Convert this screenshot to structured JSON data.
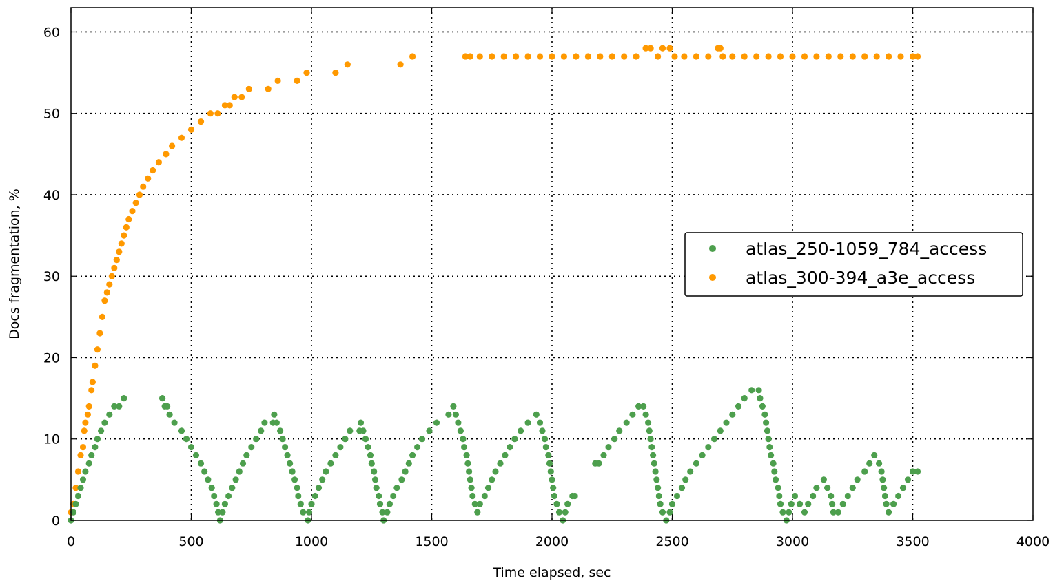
{
  "chart_data": {
    "type": "scatter",
    "title": "",
    "xlabel": "Time elapsed, sec",
    "ylabel": "Docs fragmentation, %",
    "xlim": [
      0,
      4000
    ],
    "ylim": [
      0,
      63
    ],
    "xticks": [
      0,
      500,
      1000,
      1500,
      2000,
      2500,
      3000,
      3500,
      4000
    ],
    "yticks": [
      0,
      10,
      20,
      30,
      40,
      50,
      60
    ],
    "grid": true,
    "legend_position": "center-right",
    "series": [
      {
        "name": "atlas_250-1059_784_access",
        "color": "#4d9f4d",
        "points": [
          [
            0,
            0
          ],
          [
            10,
            1
          ],
          [
            20,
            2
          ],
          [
            30,
            3
          ],
          [
            40,
            4
          ],
          [
            50,
            5
          ],
          [
            60,
            6
          ],
          [
            75,
            7
          ],
          [
            85,
            8
          ],
          [
            100,
            9
          ],
          [
            110,
            10
          ],
          [
            125,
            11
          ],
          [
            140,
            12
          ],
          [
            160,
            13
          ],
          [
            180,
            14
          ],
          [
            200,
            14
          ],
          [
            220,
            15
          ],
          [
            380,
            15
          ],
          [
            390,
            14
          ],
          [
            400,
            14
          ],
          [
            410,
            13
          ],
          [
            430,
            12
          ],
          [
            460,
            11
          ],
          [
            480,
            10
          ],
          [
            500,
            9
          ],
          [
            520,
            8
          ],
          [
            540,
            7
          ],
          [
            555,
            6
          ],
          [
            570,
            5
          ],
          [
            585,
            4
          ],
          [
            595,
            3
          ],
          [
            605,
            2
          ],
          [
            612,
            1
          ],
          [
            620,
            0
          ],
          [
            630,
            1
          ],
          [
            640,
            2
          ],
          [
            655,
            3
          ],
          [
            670,
            4
          ],
          [
            685,
            5
          ],
          [
            700,
            6
          ],
          [
            715,
            7
          ],
          [
            730,
            8
          ],
          [
            750,
            9
          ],
          [
            770,
            10
          ],
          [
            790,
            11
          ],
          [
            805,
            12
          ],
          [
            840,
            12
          ],
          [
            845,
            13
          ],
          [
            855,
            12
          ],
          [
            870,
            11
          ],
          [
            880,
            10
          ],
          [
            890,
            9
          ],
          [
            900,
            8
          ],
          [
            910,
            7
          ],
          [
            920,
            6
          ],
          [
            930,
            5
          ],
          [
            940,
            4
          ],
          [
            945,
            3
          ],
          [
            955,
            2
          ],
          [
            965,
            1
          ],
          [
            985,
            0
          ],
          [
            990,
            1
          ],
          [
            1000,
            2
          ],
          [
            1015,
            3
          ],
          [
            1030,
            4
          ],
          [
            1045,
            5
          ],
          [
            1060,
            6
          ],
          [
            1080,
            7
          ],
          [
            1100,
            8
          ],
          [
            1120,
            9
          ],
          [
            1140,
            10
          ],
          [
            1160,
            11
          ],
          [
            1200,
            11
          ],
          [
            1205,
            12
          ],
          [
            1215,
            11
          ],
          [
            1225,
            10
          ],
          [
            1235,
            9
          ],
          [
            1245,
            8
          ],
          [
            1250,
            7
          ],
          [
            1260,
            6
          ],
          [
            1265,
            5
          ],
          [
            1270,
            4
          ],
          [
            1280,
            3
          ],
          [
            1285,
            2
          ],
          [
            1295,
            1
          ],
          [
            1300,
            0
          ],
          [
            1315,
            1
          ],
          [
            1325,
            2
          ],
          [
            1340,
            3
          ],
          [
            1355,
            4
          ],
          [
            1375,
            5
          ],
          [
            1390,
            6
          ],
          [
            1405,
            7
          ],
          [
            1420,
            8
          ],
          [
            1440,
            9
          ],
          [
            1460,
            10
          ],
          [
            1490,
            11
          ],
          [
            1520,
            12
          ],
          [
            1570,
            13
          ],
          [
            1590,
            14
          ],
          [
            1600,
            13
          ],
          [
            1610,
            12
          ],
          [
            1620,
            11
          ],
          [
            1630,
            10
          ],
          [
            1635,
            9
          ],
          [
            1645,
            8
          ],
          [
            1650,
            7
          ],
          [
            1655,
            6
          ],
          [
            1660,
            5
          ],
          [
            1665,
            4
          ],
          [
            1670,
            3
          ],
          [
            1680,
            2
          ],
          [
            1690,
            1
          ],
          [
            1700,
            2
          ],
          [
            1720,
            3
          ],
          [
            1735,
            4
          ],
          [
            1750,
            5
          ],
          [
            1765,
            6
          ],
          [
            1785,
            7
          ],
          [
            1805,
            8
          ],
          [
            1825,
            9
          ],
          [
            1845,
            10
          ],
          [
            1870,
            11
          ],
          [
            1900,
            12
          ],
          [
            1935,
            13
          ],
          [
            1950,
            12
          ],
          [
            1960,
            11
          ],
          [
            1970,
            10
          ],
          [
            1975,
            9
          ],
          [
            1985,
            8
          ],
          [
            1990,
            7
          ],
          [
            1995,
            6
          ],
          [
            2000,
            5
          ],
          [
            2005,
            4
          ],
          [
            2010,
            3
          ],
          [
            2020,
            2
          ],
          [
            2030,
            1
          ],
          [
            2045,
            0
          ],
          [
            2055,
            1
          ],
          [
            2065,
            2
          ],
          [
            2085,
            3
          ],
          [
            2095,
            3
          ],
          [
            2180,
            7
          ],
          [
            2195,
            7
          ],
          [
            2215,
            8
          ],
          [
            2235,
            9
          ],
          [
            2260,
            10
          ],
          [
            2280,
            11
          ],
          [
            2310,
            12
          ],
          [
            2335,
            13
          ],
          [
            2360,
            14
          ],
          [
            2380,
            14
          ],
          [
            2390,
            13
          ],
          [
            2400,
            12
          ],
          [
            2405,
            11
          ],
          [
            2410,
            10
          ],
          [
            2415,
            9
          ],
          [
            2420,
            8
          ],
          [
            2425,
            7
          ],
          [
            2430,
            6
          ],
          [
            2435,
            5
          ],
          [
            2440,
            4
          ],
          [
            2445,
            3
          ],
          [
            2450,
            2
          ],
          [
            2460,
            1
          ],
          [
            2475,
            0
          ],
          [
            2490,
            1
          ],
          [
            2500,
            2
          ],
          [
            2520,
            3
          ],
          [
            2540,
            4
          ],
          [
            2555,
            5
          ],
          [
            2575,
            6
          ],
          [
            2600,
            7
          ],
          [
            2625,
            8
          ],
          [
            2650,
            9
          ],
          [
            2675,
            10
          ],
          [
            2700,
            11
          ],
          [
            2725,
            12
          ],
          [
            2750,
            13
          ],
          [
            2775,
            14
          ],
          [
            2800,
            15
          ],
          [
            2830,
            16
          ],
          [
            2860,
            16
          ],
          [
            2865,
            15
          ],
          [
            2875,
            14
          ],
          [
            2885,
            13
          ],
          [
            2890,
            12
          ],
          [
            2895,
            11
          ],
          [
            2900,
            10
          ],
          [
            2905,
            9
          ],
          [
            2910,
            8
          ],
          [
            2920,
            7
          ],
          [
            2925,
            6
          ],
          [
            2930,
            5
          ],
          [
            2940,
            4
          ],
          [
            2945,
            3
          ],
          [
            2950,
            2
          ],
          [
            2960,
            1
          ],
          [
            2975,
            0
          ],
          [
            2985,
            1
          ],
          [
            2995,
            2
          ],
          [
            3010,
            3
          ],
          [
            3030,
            2
          ],
          [
            3050,
            1
          ],
          [
            3065,
            2
          ],
          [
            3085,
            3
          ],
          [
            3100,
            4
          ],
          [
            3130,
            5
          ],
          [
            3145,
            4
          ],
          [
            3160,
            3
          ],
          [
            3165,
            2
          ],
          [
            3170,
            1
          ],
          [
            3190,
            1
          ],
          [
            3210,
            2
          ],
          [
            3230,
            3
          ],
          [
            3250,
            4
          ],
          [
            3270,
            5
          ],
          [
            3300,
            6
          ],
          [
            3320,
            7
          ],
          [
            3340,
            8
          ],
          [
            3360,
            7
          ],
          [
            3370,
            6
          ],
          [
            3375,
            5
          ],
          [
            3380,
            4
          ],
          [
            3385,
            3
          ],
          [
            3390,
            2
          ],
          [
            3400,
            1
          ],
          [
            3420,
            2
          ],
          [
            3440,
            3
          ],
          [
            3460,
            4
          ],
          [
            3480,
            5
          ],
          [
            3500,
            6
          ],
          [
            3520,
            6
          ]
        ]
      },
      {
        "name": "atlas_300-394_a3e_access",
        "color": "#ff9900",
        "points": [
          [
            0,
            1
          ],
          [
            10,
            2
          ],
          [
            20,
            4
          ],
          [
            30,
            6
          ],
          [
            40,
            8
          ],
          [
            50,
            9
          ],
          [
            55,
            11
          ],
          [
            60,
            12
          ],
          [
            70,
            13
          ],
          [
            75,
            14
          ],
          [
            85,
            16
          ],
          [
            90,
            17
          ],
          [
            100,
            19
          ],
          [
            110,
            21
          ],
          [
            120,
            23
          ],
          [
            130,
            25
          ],
          [
            140,
            27
          ],
          [
            150,
            28
          ],
          [
            160,
            29
          ],
          [
            170,
            30
          ],
          [
            180,
            31
          ],
          [
            190,
            32
          ],
          [
            200,
            33
          ],
          [
            210,
            34
          ],
          [
            220,
            35
          ],
          [
            230,
            36
          ],
          [
            240,
            37
          ],
          [
            255,
            38
          ],
          [
            270,
            39
          ],
          [
            285,
            40
          ],
          [
            300,
            41
          ],
          [
            320,
            42
          ],
          [
            340,
            43
          ],
          [
            365,
            44
          ],
          [
            395,
            45
          ],
          [
            420,
            46
          ],
          [
            460,
            47
          ],
          [
            500,
            48
          ],
          [
            540,
            49
          ],
          [
            580,
            50
          ],
          [
            610,
            50
          ],
          [
            640,
            51
          ],
          [
            660,
            51
          ],
          [
            680,
            52
          ],
          [
            710,
            52
          ],
          [
            740,
            53
          ],
          [
            820,
            53
          ],
          [
            860,
            54
          ],
          [
            940,
            54
          ],
          [
            980,
            55
          ],
          [
            1100,
            55
          ],
          [
            1150,
            56
          ],
          [
            1370,
            56
          ],
          [
            1420,
            57
          ],
          [
            1640,
            57
          ],
          [
            1660,
            57
          ],
          [
            1700,
            57
          ],
          [
            1750,
            57
          ],
          [
            1800,
            57
          ],
          [
            1850,
            57
          ],
          [
            1900,
            57
          ],
          [
            1950,
            57
          ],
          [
            2000,
            57
          ],
          [
            2050,
            57
          ],
          [
            2100,
            57
          ],
          [
            2150,
            57
          ],
          [
            2200,
            57
          ],
          [
            2250,
            57
          ],
          [
            2300,
            57
          ],
          [
            2350,
            57
          ],
          [
            2390,
            58
          ],
          [
            2410,
            58
          ],
          [
            2440,
            57
          ],
          [
            2460,
            58
          ],
          [
            2490,
            58
          ],
          [
            2510,
            57
          ],
          [
            2550,
            57
          ],
          [
            2600,
            57
          ],
          [
            2650,
            57
          ],
          [
            2690,
            58
          ],
          [
            2700,
            58
          ],
          [
            2710,
            57
          ],
          [
            2750,
            57
          ],
          [
            2800,
            57
          ],
          [
            2850,
            57
          ],
          [
            2900,
            57
          ],
          [
            2950,
            57
          ],
          [
            3000,
            57
          ],
          [
            3050,
            57
          ],
          [
            3100,
            57
          ],
          [
            3150,
            57
          ],
          [
            3200,
            57
          ],
          [
            3250,
            57
          ],
          [
            3300,
            57
          ],
          [
            3350,
            57
          ],
          [
            3400,
            57
          ],
          [
            3450,
            57
          ],
          [
            3500,
            57
          ],
          [
            3520,
            57
          ]
        ]
      }
    ]
  }
}
